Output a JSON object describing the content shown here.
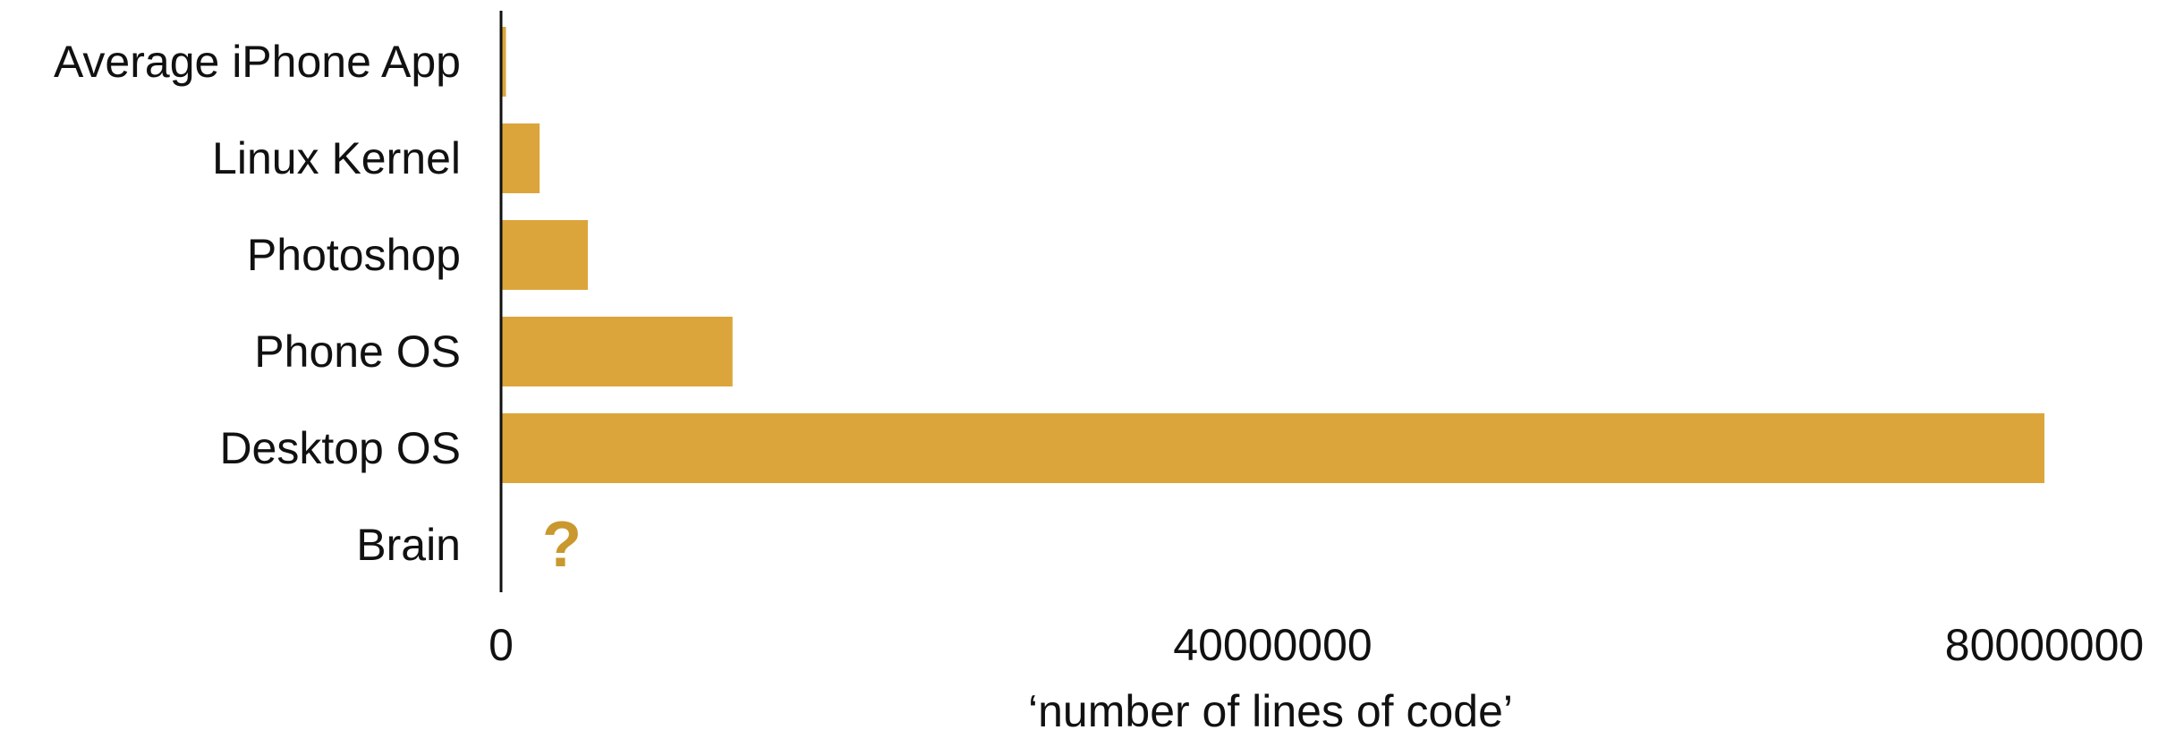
{
  "chart_data": {
    "type": "bar",
    "orientation": "horizontal",
    "categories": [
      "Average iPhone App",
      "Linux Kernel",
      "Photoshop",
      "Phone OS",
      "Desktop OS",
      "Brain"
    ],
    "values": [
      50000,
      2000000,
      4500000,
      12000000,
      80000000,
      null
    ],
    "annotations": [
      {
        "category": "Brain",
        "text": "?"
      }
    ],
    "xlabel": "‘number of lines of code’",
    "ylabel": "",
    "title": "",
    "xlim": [
      0,
      80000000
    ],
    "xticks": [
      0,
      40000000,
      80000000
    ],
    "xtick_labels": [
      "0",
      "40000000",
      "80000000"
    ],
    "grid": false,
    "legend": "none",
    "colors": {
      "bar": "#dca53b",
      "annotation": "#c9982e",
      "axis": "#111111",
      "text": "#111111"
    }
  }
}
